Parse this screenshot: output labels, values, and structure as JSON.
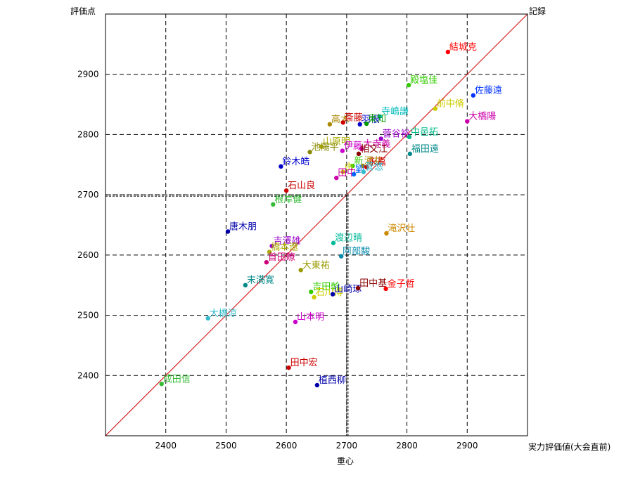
{
  "chart_data": {
    "type": "scatter",
    "title": "",
    "ylabel": "評価点",
    "xlabel": "実力評価値(大会直前)",
    "x_center_label": "重心",
    "top_right_label": "記録",
    "xlim": [
      2300,
      3000
    ],
    "ylim": [
      2300,
      3000
    ],
    "xticks": [
      2400,
      2500,
      2600,
      2700,
      2800,
      2900
    ],
    "yticks": [
      2400,
      2500,
      2600,
      2700,
      2800,
      2900
    ],
    "center": {
      "x": 2700,
      "y": 2700
    },
    "grid": true,
    "diagonal": true,
    "points": [
      {
        "name": "結城克",
        "x": 2868,
        "y": 2937,
        "color": "#ff0000"
      },
      {
        "name": "殿塩佳",
        "x": 2803,
        "y": 2882,
        "color": "#33cc00"
      },
      {
        "name": "佐藤遠",
        "x": 2910,
        "y": 2865,
        "color": "#0033ff"
      },
      {
        "name": "前中脩",
        "x": 2847,
        "y": 2843,
        "color": "#cccc00"
      },
      {
        "name": "大橋陽",
        "x": 2900,
        "y": 2822,
        "color": "#cc00aa"
      },
      {
        "name": "寺嶋謙",
        "x": 2755,
        "y": 2830,
        "color": "#00bbbb"
      },
      {
        "name": "高木",
        "x": 2672,
        "y": 2817,
        "color": "#aa8800"
      },
      {
        "name": "斎藤",
        "x": 2694,
        "y": 2820,
        "color": "#cc0000"
      },
      {
        "name": "羽根",
        "x": 2722,
        "y": 2817,
        "color": "#0000cc"
      },
      {
        "name": "東知",
        "x": 2733,
        "y": 2818,
        "color": "#009900"
      },
      {
        "name": "菅谷裕",
        "x": 2757,
        "y": 2793,
        "color": "#9900cc"
      },
      {
        "name": "中邑拓",
        "x": 2804,
        "y": 2796,
        "color": "#00bb88"
      },
      {
        "name": "福田遠",
        "x": 2805,
        "y": 2768,
        "color": "#008888"
      },
      {
        "name": "山原明",
        "x": 2658,
        "y": 2780,
        "color": "#aaaa00"
      },
      {
        "name": "池陽平",
        "x": 2639,
        "y": 2771,
        "color": "#888800"
      },
      {
        "name": "伊藤",
        "x": 2693,
        "y": 2773,
        "color": "#cc00cc"
      },
      {
        "name": "大寺義",
        "x": 2725,
        "y": 2776,
        "color": "#cc00aa"
      },
      {
        "name": "相文江",
        "x": 2720,
        "y": 2768,
        "color": "#880000"
      },
      {
        "name": "鈴木皓",
        "x": 2591,
        "y": 2747,
        "color": "#0000cc"
      },
      {
        "name": "新",
        "x": 2710,
        "y": 2748,
        "color": "#33cc00"
      },
      {
        "name": "酒井",
        "x": 2727,
        "y": 2748,
        "color": "#aa8800"
      },
      {
        "name": "永嘉",
        "x": 2733,
        "y": 2746,
        "color": "#cc0000"
      },
      {
        "name": "由",
        "x": 2694,
        "y": 2738,
        "color": "#cccc00"
      },
      {
        "name": "田中",
        "x": 2683,
        "y": 2728,
        "color": "#cc00aa"
      },
      {
        "name": "劉",
        "x": 2712,
        "y": 2734,
        "color": "#0066ff"
      },
      {
        "name": "菅悠",
        "x": 2728,
        "y": 2738,
        "color": "#33bbcc"
      },
      {
        "name": "石山良",
        "x": 2600,
        "y": 2707,
        "color": "#cc0000"
      },
      {
        "name": "根岸健",
        "x": 2578,
        "y": 2684,
        "color": "#33bb33"
      },
      {
        "name": "唐木朋",
        "x": 2503,
        "y": 2639,
        "color": "#0000aa"
      },
      {
        "name": "滝沢壮",
        "x": 2766,
        "y": 2636,
        "color": "#cc8800"
      },
      {
        "name": "吉澤雄",
        "x": 2576,
        "y": 2615,
        "color": "#9900cc"
      },
      {
        "name": "橋本遼",
        "x": 2572,
        "y": 2605,
        "color": "#aaaa00"
      },
      {
        "name": "渡辺晴",
        "x": 2678,
        "y": 2620,
        "color": "#00bb99"
      },
      {
        "name": "阿部駿",
        "x": 2691,
        "y": 2598,
        "color": "#0088aa"
      },
      {
        "name": "首田瞭",
        "x": 2567,
        "y": 2588,
        "color": "#cc0077"
      },
      {
        "name": "大東祐",
        "x": 2624,
        "y": 2575,
        "color": "#999900"
      },
      {
        "name": "末満寛",
        "x": 2532,
        "y": 2550,
        "color": "#008888"
      },
      {
        "name": "吉田幹",
        "x": 2641,
        "y": 2539,
        "color": "#33cc00"
      },
      {
        "name": "石川博",
        "x": 2646,
        "y": 2530,
        "color": "#cccc00"
      },
      {
        "name": "山崎琢",
        "x": 2677,
        "y": 2535,
        "color": "#0000aa"
      },
      {
        "name": "田中基",
        "x": 2719,
        "y": 2545,
        "color": "#880000"
      },
      {
        "name": "金子哲",
        "x": 2765,
        "y": 2544,
        "color": "#ff0000"
      },
      {
        "name": "大橋涼",
        "x": 2470,
        "y": 2495,
        "color": "#33bbcc"
      },
      {
        "name": "山本明",
        "x": 2615,
        "y": 2489,
        "color": "#cc00cc"
      },
      {
        "name": "田中宏",
        "x": 2604,
        "y": 2413,
        "color": "#cc0000"
      },
      {
        "name": "植西柳",
        "x": 2651,
        "y": 2384,
        "color": "#0000aa"
      },
      {
        "name": "成田信",
        "x": 2393,
        "y": 2386,
        "color": "#33bb33"
      }
    ]
  }
}
